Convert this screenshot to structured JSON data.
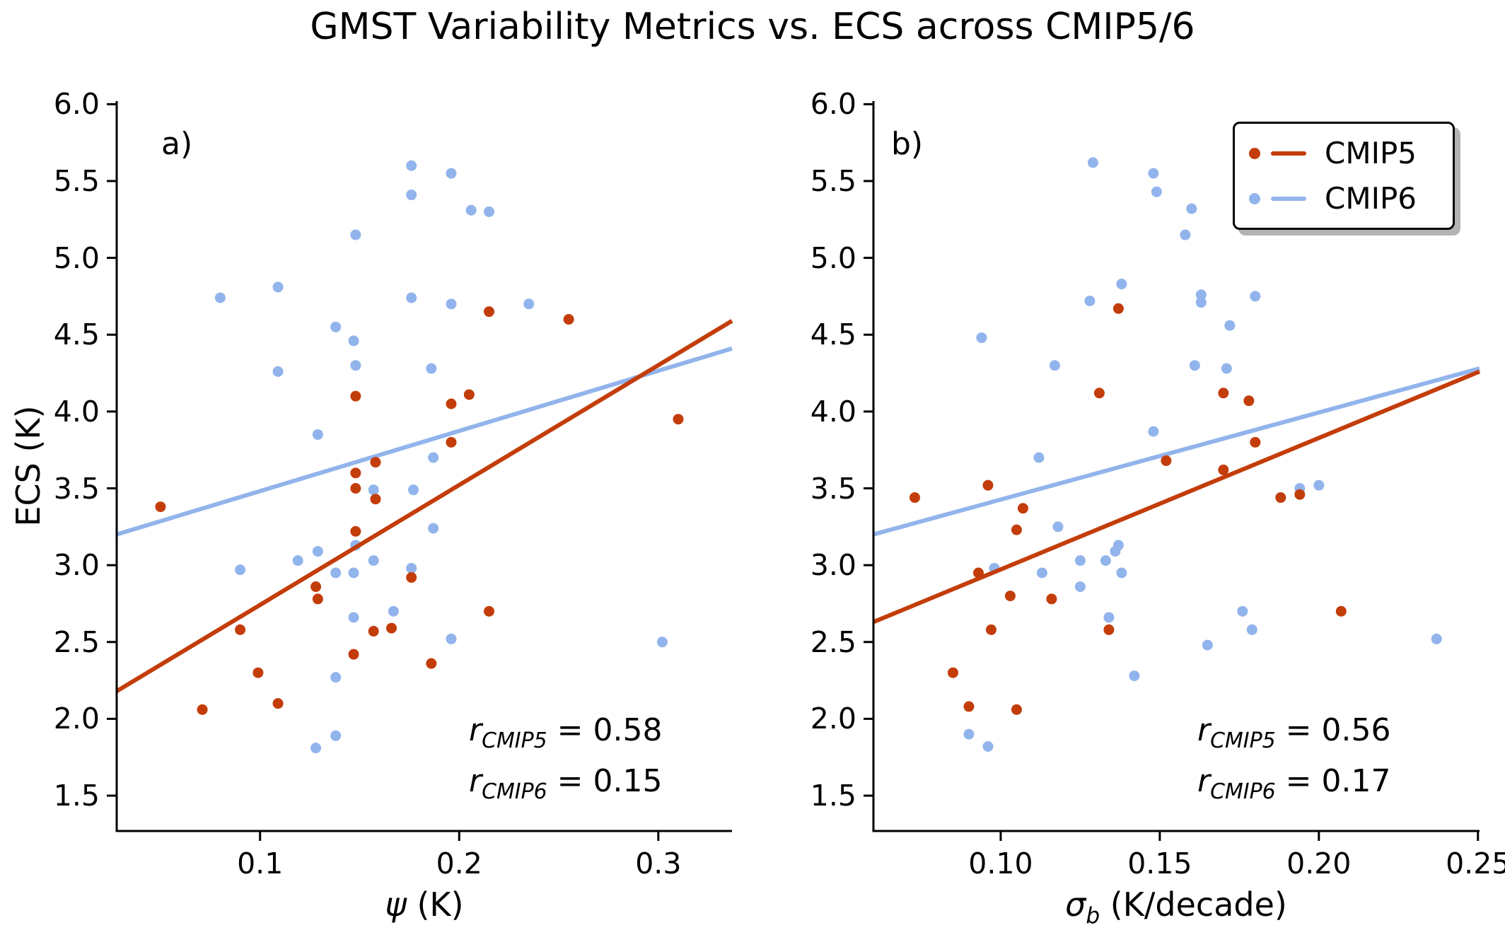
{
  "title": "GMST Variability Metrics vs. ECS across CMIP5/6",
  "colors": {
    "cmip5": "#c33d0a",
    "cmip6": "#92b4ec",
    "axis": "#000000",
    "background": "#ffffff",
    "legend_shadow": "#b3b3b3"
  },
  "legend": {
    "items": [
      {
        "label": "CMIP5"
      },
      {
        "label": "CMIP6"
      }
    ]
  },
  "panel_a": {
    "letter": "a)",
    "ylabel": "ECS (K)",
    "xlabel": {
      "sym": "ψ",
      "sub": "",
      "rest": " (K)"
    },
    "annotation": {
      "line1": {
        "var": "r",
        "sub": "CMIP5",
        "eq": " = 0.58"
      },
      "line2": {
        "var": "r",
        "sub": "CMIP6",
        "eq": " = 0.15"
      }
    }
  },
  "panel_b": {
    "letter": "b)",
    "ylabel": "",
    "xlabel": {
      "sym": "σ",
      "sub": "b",
      "rest": " (K/decade)"
    },
    "annotation": {
      "line1": {
        "var": "r",
        "sub": "CMIP5",
        "eq": " = 0.56"
      },
      "line2": {
        "var": "r",
        "sub": "CMIP6",
        "eq": " = 0.17"
      }
    }
  },
  "chart_data": [
    {
      "type": "scatter",
      "panel": "a",
      "title": "",
      "xlabel": "ψ (K)",
      "ylabel": "ECS (K)",
      "xlim": [
        0.028,
        0.337
      ],
      "ylim": [
        1.27,
        6.02
      ],
      "grid": false,
      "legend_position": "upper right of panel b",
      "xticks": [
        {
          "v": 0.1,
          "label": "0.1"
        },
        {
          "v": 0.2,
          "label": "0.2"
        },
        {
          "v": 0.3,
          "label": "0.3"
        }
      ],
      "yticks": [
        {
          "v": 1.5,
          "label": "1.5"
        },
        {
          "v": 2.0,
          "label": "2.0"
        },
        {
          "v": 2.5,
          "label": "2.5"
        },
        {
          "v": 3.0,
          "label": "3.0"
        },
        {
          "v": 3.5,
          "label": "3.5"
        },
        {
          "v": 4.0,
          "label": "4.0"
        },
        {
          "v": 4.5,
          "label": "4.5"
        },
        {
          "v": 5.0,
          "label": "5.0"
        },
        {
          "v": 5.5,
          "label": "5.5"
        },
        {
          "v": 6.0,
          "label": "6.0"
        }
      ],
      "series": [
        {
          "name": "CMIP5",
          "color": "#c33d0a",
          "r_value": 0.58,
          "points": [
            [
              0.05,
              3.38
            ],
            [
              0.071,
              2.06
            ],
            [
              0.09,
              2.58
            ],
            [
              0.099,
              2.3
            ],
            [
              0.109,
              2.1
            ],
            [
              0.128,
              2.86
            ],
            [
              0.129,
              2.78
            ],
            [
              0.147,
              2.42
            ],
            [
              0.148,
              3.22
            ],
            [
              0.148,
              3.5
            ],
            [
              0.148,
              3.6
            ],
            [
              0.148,
              4.1
            ],
            [
              0.157,
              2.57
            ],
            [
              0.158,
              3.43
            ],
            [
              0.158,
              3.67
            ],
            [
              0.166,
              2.59
            ],
            [
              0.176,
              2.92
            ],
            [
              0.186,
              2.36
            ],
            [
              0.196,
              3.8
            ],
            [
              0.196,
              4.05
            ],
            [
              0.205,
              4.11
            ],
            [
              0.215,
              2.7
            ],
            [
              0.215,
              4.65
            ],
            [
              0.255,
              4.6
            ],
            [
              0.31,
              3.95
            ]
          ],
          "trend": {
            "x": [
              0.028,
              0.337
            ],
            "y": [
              2.18,
              4.59
            ]
          }
        },
        {
          "name": "CMIP6",
          "color": "#92b4ec",
          "r_value": 0.15,
          "points": [
            [
              0.08,
              4.74
            ],
            [
              0.09,
              2.97
            ],
            [
              0.109,
              4.81
            ],
            [
              0.109,
              4.26
            ],
            [
              0.119,
              3.03
            ],
            [
              0.128,
              1.81
            ],
            [
              0.129,
              3.09
            ],
            [
              0.129,
              3.85
            ],
            [
              0.138,
              1.89
            ],
            [
              0.138,
              2.27
            ],
            [
              0.138,
              2.95
            ],
            [
              0.138,
              4.55
            ],
            [
              0.147,
              2.66
            ],
            [
              0.147,
              2.95
            ],
            [
              0.148,
              3.13
            ],
            [
              0.147,
              4.46
            ],
            [
              0.148,
              4.3
            ],
            [
              0.148,
              5.15
            ],
            [
              0.157,
              3.03
            ],
            [
              0.157,
              3.49
            ],
            [
              0.167,
              2.7
            ],
            [
              0.176,
              2.98
            ],
            [
              0.177,
              3.49
            ],
            [
              0.176,
              4.74
            ],
            [
              0.176,
              5.41
            ],
            [
              0.176,
              5.6
            ],
            [
              0.187,
              3.24
            ],
            [
              0.187,
              3.7
            ],
            [
              0.186,
              4.28
            ],
            [
              0.196,
              2.52
            ],
            [
              0.196,
              4.7
            ],
            [
              0.196,
              5.55
            ],
            [
              0.206,
              5.31
            ],
            [
              0.215,
              5.3
            ],
            [
              0.235,
              4.7
            ],
            [
              0.302,
              2.5
            ]
          ],
          "trend": {
            "x": [
              0.028,
              0.337
            ],
            "y": [
              3.2,
              4.41
            ]
          }
        }
      ]
    },
    {
      "type": "scatter",
      "panel": "b",
      "title": "",
      "xlabel": "σ_b (K/decade)",
      "ylabel": "ECS (K)",
      "xlim": [
        0.06,
        0.2505
      ],
      "ylim": [
        1.27,
        6.02
      ],
      "grid": false,
      "xticks": [
        {
          "v": 0.1,
          "label": "0.10"
        },
        {
          "v": 0.15,
          "label": "0.15"
        },
        {
          "v": 0.2,
          "label": "0.20"
        },
        {
          "v": 0.25,
          "label": "0.25"
        }
      ],
      "yticks": [
        {
          "v": 1.5,
          "label": "1.5"
        },
        {
          "v": 2.0,
          "label": "2.0"
        },
        {
          "v": 2.5,
          "label": "2.5"
        },
        {
          "v": 3.0,
          "label": "3.0"
        },
        {
          "v": 3.5,
          "label": "3.5"
        },
        {
          "v": 4.0,
          "label": "4.0"
        },
        {
          "v": 4.5,
          "label": "4.5"
        },
        {
          "v": 5.0,
          "label": "5.0"
        },
        {
          "v": 5.5,
          "label": "5.5"
        },
        {
          "v": 6.0,
          "label": "6.0"
        }
      ],
      "series": [
        {
          "name": "CMIP5",
          "color": "#c33d0a",
          "r_value": 0.56,
          "points": [
            [
              0.073,
              3.44
            ],
            [
              0.085,
              2.3
            ],
            [
              0.09,
              2.08
            ],
            [
              0.093,
              2.95
            ],
            [
              0.096,
              3.52
            ],
            [
              0.097,
              2.58
            ],
            [
              0.103,
              2.8
            ],
            [
              0.105,
              2.06
            ],
            [
              0.105,
              3.23
            ],
            [
              0.107,
              3.37
            ],
            [
              0.116,
              2.78
            ],
            [
              0.131,
              4.12
            ],
            [
              0.134,
              2.58
            ],
            [
              0.137,
              4.67
            ],
            [
              0.152,
              3.68
            ],
            [
              0.17,
              3.62
            ],
            [
              0.17,
              4.12
            ],
            [
              0.178,
              4.07
            ],
            [
              0.18,
              3.8
            ],
            [
              0.188,
              3.44
            ],
            [
              0.194,
              3.46
            ],
            [
              0.207,
              2.7
            ]
          ],
          "trend": {
            "x": [
              0.06,
              0.2505
            ],
            "y": [
              2.63,
              4.26
            ]
          }
        },
        {
          "name": "CMIP6",
          "color": "#92b4ec",
          "r_value": 0.17,
          "points": [
            [
              0.09,
              1.9
            ],
            [
              0.094,
              4.48
            ],
            [
              0.096,
              1.82
            ],
            [
              0.098,
              2.98
            ],
            [
              0.112,
              3.7
            ],
            [
              0.113,
              2.95
            ],
            [
              0.117,
              4.3
            ],
            [
              0.118,
              3.25
            ],
            [
              0.125,
              2.86
            ],
            [
              0.125,
              3.03
            ],
            [
              0.128,
              4.72
            ],
            [
              0.129,
              5.62
            ],
            [
              0.133,
              3.03
            ],
            [
              0.134,
              2.66
            ],
            [
              0.136,
              3.09
            ],
            [
              0.137,
              3.13
            ],
            [
              0.138,
              2.95
            ],
            [
              0.138,
              4.83
            ],
            [
              0.142,
              2.28
            ],
            [
              0.148,
              3.87
            ],
            [
              0.148,
              5.55
            ],
            [
              0.149,
              5.43
            ],
            [
              0.158,
              5.15
            ],
            [
              0.16,
              5.32
            ],
            [
              0.161,
              4.3
            ],
            [
              0.163,
              4.71
            ],
            [
              0.163,
              4.76
            ],
            [
              0.165,
              2.48
            ],
            [
              0.171,
              4.28
            ],
            [
              0.172,
              4.56
            ],
            [
              0.176,
              2.7
            ],
            [
              0.179,
              2.58
            ],
            [
              0.18,
              4.75
            ],
            [
              0.194,
              3.5
            ],
            [
              0.2,
              3.52
            ],
            [
              0.237,
              2.52
            ]
          ],
          "trend": {
            "x": [
              0.06,
              0.2505
            ],
            "y": [
              3.2,
              4.28
            ]
          }
        }
      ]
    }
  ]
}
